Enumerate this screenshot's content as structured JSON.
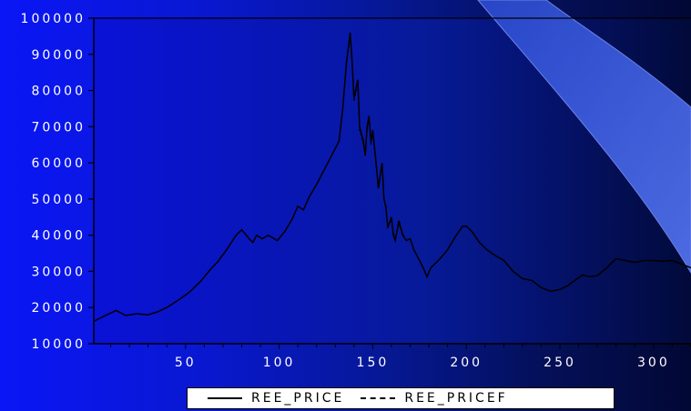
{
  "chart_data": {
    "type": "line",
    "xlim": [
      1,
      320
    ],
    "ylim": [
      10000,
      100000
    ],
    "x_ticks": [
      50,
      100,
      150,
      200,
      250,
      300
    ],
    "y_ticks": [
      10000,
      20000,
      30000,
      40000,
      50000,
      60000,
      70000,
      80000,
      90000,
      100000
    ],
    "x_tick_labels": [
      "50",
      "100",
      "150",
      "200",
      "250",
      "300"
    ],
    "y_tick_labels": [
      "10000",
      "20000",
      "30000",
      "40000",
      "50000",
      "60000",
      "70000",
      "80000",
      "90000",
      "100000"
    ],
    "grid": false,
    "legend_position": "bottom",
    "series": [
      {
        "name": "REE_PRICE",
        "style": "solid",
        "color": "#000000",
        "points": [
          [
            1,
            16200
          ],
          [
            8,
            18000
          ],
          [
            13,
            19200
          ],
          [
            18,
            17800
          ],
          [
            24,
            18300
          ],
          [
            30,
            18000
          ],
          [
            35,
            18800
          ],
          [
            40,
            20000
          ],
          [
            46,
            22000
          ],
          [
            52,
            24200
          ],
          [
            58,
            27200
          ],
          [
            64,
            31000
          ],
          [
            67,
            32500
          ],
          [
            72,
            36000
          ],
          [
            77,
            40000
          ],
          [
            80,
            41500
          ],
          [
            84,
            39000
          ],
          [
            86,
            38000
          ],
          [
            88,
            40000
          ],
          [
            91,
            39000
          ],
          [
            94,
            40000
          ],
          [
            96,
            39500
          ],
          [
            99,
            38500
          ],
          [
            103,
            41000
          ],
          [
            107,
            44500
          ],
          [
            110,
            48000
          ],
          [
            113,
            47000
          ],
          [
            116,
            50500
          ],
          [
            120,
            54000
          ],
          [
            124,
            58000
          ],
          [
            128,
            62000
          ],
          [
            132,
            66000
          ],
          [
            134,
            75000
          ],
          [
            136,
            88000
          ],
          [
            138,
            96000
          ],
          [
            139,
            88000
          ],
          [
            140,
            78000
          ],
          [
            142,
            83000
          ],
          [
            143,
            70000
          ],
          [
            145,
            66000
          ],
          [
            146,
            62000
          ],
          [
            147,
            70000
          ],
          [
            148,
            73000
          ],
          [
            149,
            66000
          ],
          [
            150,
            69000
          ],
          [
            151,
            64000
          ],
          [
            152,
            59000
          ],
          [
            153,
            53000
          ],
          [
            155,
            60000
          ],
          [
            156,
            50000
          ],
          [
            157,
            48000
          ],
          [
            158,
            42000
          ],
          [
            160,
            45000
          ],
          [
            161,
            40000
          ],
          [
            162,
            38500
          ],
          [
            164,
            44000
          ],
          [
            166,
            40000
          ],
          [
            168,
            38500
          ],
          [
            170,
            39000
          ],
          [
            172,
            36000
          ],
          [
            175,
            33000
          ],
          [
            177,
            31000
          ],
          [
            179,
            28500
          ],
          [
            181,
            31000
          ],
          [
            186,
            33500
          ],
          [
            190,
            36000
          ],
          [
            194,
            39500
          ],
          [
            198,
            42500
          ],
          [
            200,
            42500
          ],
          [
            203,
            41000
          ],
          [
            207,
            38000
          ],
          [
            211,
            36000
          ],
          [
            215,
            34500
          ],
          [
            220,
            33000
          ],
          [
            225,
            30000
          ],
          [
            230,
            28000
          ],
          [
            235,
            27500
          ],
          [
            240,
            25500
          ],
          [
            245,
            24500
          ],
          [
            250,
            25000
          ],
          [
            254,
            26000
          ],
          [
            258,
            27500
          ],
          [
            262,
            29000
          ],
          [
            266,
            28500
          ],
          [
            270,
            28800
          ],
          [
            275,
            31000
          ],
          [
            280,
            33500
          ],
          [
            285,
            33000
          ],
          [
            290,
            32500
          ],
          [
            295,
            33000
          ],
          [
            300,
            33000
          ],
          [
            305,
            32800
          ],
          [
            310,
            33000
          ],
          [
            315,
            32000
          ],
          [
            320,
            31000
          ]
        ]
      },
      {
        "name": "REE_PRICEF",
        "style": "dashed",
        "color": "#000000",
        "points": [
          [
            1,
            16200
          ],
          [
            8,
            18000
          ],
          [
            13,
            19200
          ],
          [
            18,
            17800
          ],
          [
            24,
            18300
          ],
          [
            30,
            18000
          ],
          [
            35,
            18800
          ],
          [
            40,
            20000
          ],
          [
            46,
            22000
          ],
          [
            52,
            24200
          ],
          [
            58,
            27200
          ],
          [
            64,
            31000
          ],
          [
            67,
            32500
          ],
          [
            72,
            36000
          ],
          [
            77,
            40000
          ],
          [
            80,
            41500
          ],
          [
            84,
            39000
          ],
          [
            86,
            38000
          ],
          [
            88,
            40000
          ],
          [
            91,
            39000
          ],
          [
            94,
            40000
          ],
          [
            96,
            39500
          ],
          [
            99,
            38500
          ],
          [
            103,
            41000
          ],
          [
            107,
            44500
          ],
          [
            110,
            48000
          ],
          [
            113,
            47000
          ],
          [
            116,
            50500
          ],
          [
            120,
            54000
          ],
          [
            124,
            58000
          ],
          [
            128,
            62000
          ],
          [
            132,
            66000
          ],
          [
            134,
            75000
          ],
          [
            136,
            87000
          ],
          [
            138,
            95000
          ],
          [
            139,
            87000
          ],
          [
            140,
            77000
          ],
          [
            142,
            82000
          ],
          [
            143,
            69000
          ],
          [
            145,
            65000
          ],
          [
            146,
            62000
          ],
          [
            147,
            69000
          ],
          [
            148,
            72000
          ],
          [
            149,
            65000
          ],
          [
            150,
            68000
          ],
          [
            151,
            63000
          ],
          [
            152,
            58000
          ],
          [
            153,
            54000
          ],
          [
            155,
            59000
          ],
          [
            156,
            51000
          ],
          [
            157,
            47000
          ],
          [
            158,
            43000
          ],
          [
            160,
            44000
          ],
          [
            161,
            41000
          ],
          [
            162,
            39000
          ],
          [
            164,
            43000
          ],
          [
            166,
            40500
          ],
          [
            168,
            38500
          ],
          [
            170,
            39000
          ],
          [
            172,
            36000
          ],
          [
            175,
            33000
          ],
          [
            177,
            31000
          ],
          [
            179,
            28500
          ],
          [
            181,
            31000
          ],
          [
            186,
            33500
          ],
          [
            190,
            36000
          ],
          [
            194,
            39500
          ],
          [
            198,
            42500
          ],
          [
            200,
            42500
          ],
          [
            203,
            41000
          ],
          [
            207,
            38000
          ],
          [
            211,
            36000
          ],
          [
            215,
            34500
          ],
          [
            220,
            33000
          ],
          [
            225,
            30000
          ],
          [
            230,
            28000
          ],
          [
            235,
            27500
          ],
          [
            240,
            25500
          ],
          [
            245,
            24500
          ],
          [
            250,
            25000
          ],
          [
            254,
            26000
          ],
          [
            258,
            27500
          ],
          [
            262,
            29000
          ],
          [
            266,
            28500
          ],
          [
            270,
            28800
          ],
          [
            275,
            31000
          ],
          [
            280,
            33500
          ],
          [
            285,
            33000
          ],
          [
            290,
            32500
          ],
          [
            295,
            33000
          ],
          [
            300,
            33000
          ],
          [
            305,
            32800
          ],
          [
            310,
            33000
          ],
          [
            315,
            32000
          ],
          [
            320,
            31000
          ]
        ]
      }
    ]
  },
  "legend": {
    "items": [
      {
        "label": "REE_PRICE",
        "style": "solid"
      },
      {
        "label": "REE_PRICEF",
        "style": "dashed"
      }
    ]
  },
  "colors": {
    "plot_fill": "#0a0fa8",
    "axis": "#000000",
    "tick_text": "#ffffff",
    "swoosh_fill": "#3a5fe6",
    "swoosh_edge": "#6f8cff"
  }
}
